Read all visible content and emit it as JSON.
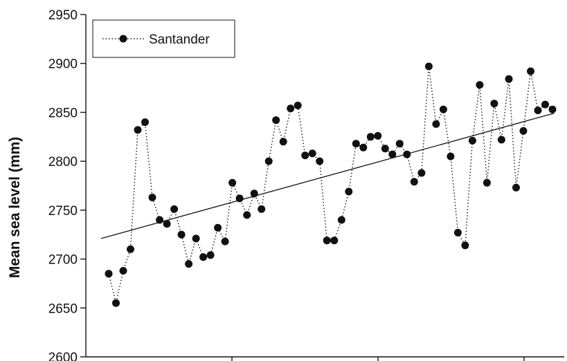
{
  "chart_data": {
    "type": "scatter",
    "ylabel": "Mean sea level (mm)",
    "ylim": [
      2600,
      2950
    ],
    "y_ticks": [
      2600,
      2650,
      2700,
      2750,
      2800,
      2850,
      2900,
      2950
    ],
    "y_tick_labels": [
      "2600",
      "2650",
      "2700",
      "2750",
      "2800",
      "2850",
      "2900",
      "2950"
    ],
    "x_tick_count": 4,
    "legend": {
      "position": "top-left",
      "entries": [
        "Santander"
      ]
    },
    "series": [
      {
        "name": "Santander",
        "style": "dotted-line-with-markers",
        "values": [
          2685,
          2655,
          2688,
          2710,
          2832,
          2840,
          2763,
          2740,
          2736,
          2751,
          2725,
          2695,
          2721,
          2702,
          2704,
          2732,
          2718,
          2778,
          2762,
          2745,
          2767,
          2751,
          2800,
          2842,
          2820,
          2854,
          2857,
          2806,
          2808,
          2800,
          2719,
          2719,
          2740,
          2769,
          2818,
          2814,
          2825,
          2826,
          2813,
          2807,
          2818,
          2807,
          2779,
          2788,
          2897,
          2838,
          2853,
          2805,
          2727,
          2714,
          2821,
          2878,
          2778,
          2859,
          2822,
          2884,
          2773,
          2831,
          2892,
          2852,
          2858,
          2853
        ]
      }
    ],
    "trend_line": {
      "y_start": 2721,
      "y_end": 2849
    }
  }
}
